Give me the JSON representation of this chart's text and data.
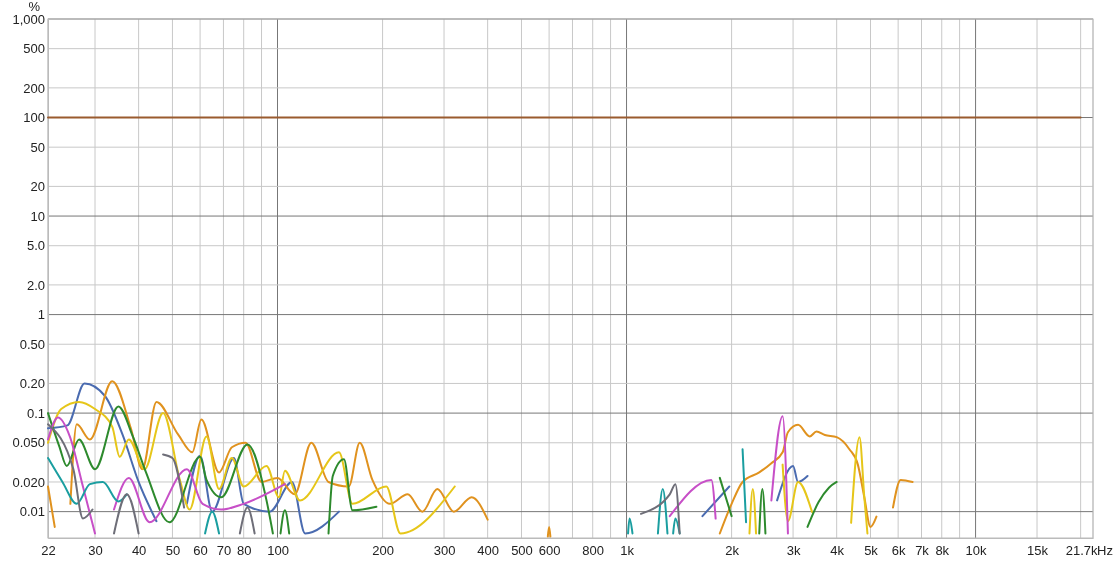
{
  "chart_data": {
    "type": "line",
    "ylabel": "%",
    "xlabel": "Hz",
    "log": "xy",
    "grid": true,
    "xlim": [
      22,
      21700
    ],
    "ylim": [
      0.0054,
      1000
    ],
    "xticks": [
      22,
      30,
      40,
      50,
      60,
      70,
      80,
      {
        "value": 90,
        "label": null
      },
      100,
      200,
      300,
      400,
      500,
      600,
      {
        "value": 700,
        "label": null
      },
      800,
      {
        "value": 900,
        "label": null
      },
      {
        "value": 1000,
        "label": "1k"
      },
      {
        "value": 2000,
        "label": "2k"
      },
      {
        "value": 3000,
        "label": "3k"
      },
      {
        "value": 4000,
        "label": "4k"
      },
      {
        "value": 5000,
        "label": "5k"
      },
      {
        "value": 6000,
        "label": "6k"
      },
      {
        "value": 7000,
        "label": "7k"
      },
      {
        "value": 8000,
        "label": "8k"
      },
      {
        "value": 9000,
        "label": null
      },
      {
        "value": 10000,
        "label": "10k"
      },
      {
        "value": 15000,
        "label": "15k"
      },
      {
        "value": 20000,
        "label": null
      },
      {
        "value": 21700,
        "label": "21.7k"
      }
    ],
    "yticks": [
      {
        "value": 1000,
        "label": "1,000"
      },
      500,
      200,
      100,
      50,
      20,
      10,
      {
        "value": 5,
        "label": "5.0"
      },
      {
        "value": 2,
        "label": "2.0"
      },
      1,
      {
        "value": 0.5,
        "label": "0.50"
      },
      {
        "value": 0.2,
        "label": "0.20"
      },
      0.1,
      {
        "value": 0.05,
        "label": "0.050"
      },
      {
        "value": 0.02,
        "label": "0.020"
      },
      0.01
    ],
    "series": [
      {
        "color": "#9a5b2e",
        "x": [
          22,
          20000
        ],
        "values": [
          100,
          100
        ]
      },
      {
        "color": "#4a6bb0",
        "x": [
          22,
          25,
          28,
          32,
          36,
          40,
          45,
          48,
          55,
          60,
          65,
          75,
          80,
          95,
          110,
          120,
          150,
          170,
          1300,
          1650,
          1970,
          2100,
          2700,
          3000,
          3100,
          3300
        ],
        "values": [
          0.07,
          0.075,
          0.2,
          0.15,
          0.06,
          0.02,
          0.008,
          null,
          0.012,
          0.037,
          0.01,
          0.035,
          0.012,
          0.01,
          0.02,
          0.006,
          0.01,
          null,
          null,
          0.009,
          0.018,
          null,
          0.013,
          0.029,
          0.02,
          0.023
        ]
      },
      {
        "color": "#e0921e",
        "x": [
          22,
          23,
          24,
          25.5,
          26.6,
          29,
          33.6,
          38,
          41,
          45,
          52,
          57,
          60.5,
          68,
          74,
          81,
          90,
          100,
          112,
          125,
          140,
          160,
          172,
          187,
          210,
          236,
          260,
          287,
          320,
          360,
          400,
          420,
          590,
          595,
          600,
          605,
          610,
          1800,
          1850,
          2000,
          2150,
          2400,
          2600,
          2800,
          2900,
          3100,
          3350,
          3500,
          3700,
          4000,
          4350,
          4600,
          4800,
          5000,
          5200,
          5400,
          5800,
          6100,
          6600
        ],
        "values": [
          0.018,
          0.007,
          null,
          0.012,
          0.077,
          0.054,
          0.21,
          0.07,
          0.027,
          0.13,
          0.06,
          0.04,
          0.086,
          0.025,
          0.045,
          0.05,
          0.02,
          0.022,
          0.015,
          0.05,
          0.02,
          0.018,
          0.05,
          0.021,
          0.012,
          0.015,
          0.01,
          0.017,
          0.01,
          0.014,
          0.0083,
          null,
          null,
          0.0056,
          0.007,
          0.0056,
          null,
          null,
          0.006,
          0.012,
          0.02,
          0.025,
          0.031,
          0.04,
          0.064,
          0.076,
          0.058,
          0.065,
          0.06,
          0.057,
          0.043,
          0.03,
          0.014,
          0.007,
          0.0089,
          null,
          0.011,
          0.021,
          0.02
        ]
      },
      {
        "color": "#e6c619",
        "x": [
          22,
          24,
          27,
          30,
          33.6,
          35.3,
          37.5,
          41.6,
          47,
          52.5,
          56,
          62.6,
          68,
          74,
          80,
          93,
          101,
          105,
          116,
          150,
          164,
          205,
          225,
          322,
          340,
          2200,
          2250,
          2300,
          2350,
          2450,
          2800,
          2900,
          3100,
          3400,
          3600,
          4300,
          4400,
          4650,
          4800,
          4900
        ],
        "values": [
          0.05,
          0.11,
          0.13,
          0.11,
          0.073,
          0.036,
          0.054,
          0.027,
          0.1,
          0.021,
          0.0105,
          0.058,
          0.017,
          0.035,
          0.018,
          0.029,
          0.014,
          0.026,
          0.013,
          0.04,
          0.012,
          0.018,
          0.006,
          0.018,
          null,
          null,
          0.006,
          0.017,
          0.006,
          null,
          0.03,
          0.008,
          0.02,
          0.0099,
          null,
          null,
          0.0077,
          0.057,
          0.014,
          0.006
        ]
      },
      {
        "color": "#2d8a2d",
        "x": [
          22,
          23.7,
          24.9,
          27,
          30,
          35,
          38.5,
          42,
          49,
          60,
          62.6,
          69,
          82,
          93,
          97,
          100,
          102,
          105,
          108,
          115,
          140,
          144,
          155,
          164,
          192,
          205,
          1800,
          1850,
          2000,
          2100,
          2400,
          2450,
          2500,
          3200,
          3300,
          3550,
          3800,
          4000
        ],
        "values": [
          0.1,
          0.046,
          0.029,
          0.054,
          0.027,
          0.117,
          0.058,
          0.025,
          0.0078,
          0.036,
          0.021,
          0.014,
          0.048,
          0.013,
          0.006,
          null,
          0.006,
          0.0103,
          0.006,
          null,
          0.006,
          0.023,
          0.034,
          0.0103,
          0.0112,
          null,
          null,
          0.022,
          0.009,
          null,
          0.006,
          0.017,
          0.006,
          null,
          0.007,
          0.0125,
          0.0175,
          0.02
        ]
      },
      {
        "color": "#c74fc7",
        "x": [
          22,
          23.5,
          25.4,
          27.7,
          30,
          32,
          34,
          37.5,
          43,
          55,
          61,
          69,
          80,
          105,
          112,
          1250,
          1330,
          1750,
          1800,
          1900,
          2500,
          2600,
          2800,
          2900
        ],
        "values": [
          0.054,
          0.09,
          0.058,
          0.018,
          0.006,
          null,
          0.0105,
          0.022,
          0.0078,
          0.027,
          0.012,
          0.0105,
          0.012,
          0.019,
          null,
          null,
          0.009,
          0.021,
          0.0085,
          null,
          null,
          0.013,
          0.093,
          0.006
        ]
      },
      {
        "color": "#1a9ea0",
        "x": [
          22,
          24.2,
          26.6,
          29,
          31.6,
          35,
          37,
          40,
          60,
          62,
          65,
          68,
          70,
          1000,
          1010,
          1020,
          1040,
          1100,
          1230,
          1270,
          1310,
          1330,
          1360,
          1380,
          1420,
          1500,
          2000,
          2150,
          2200
        ],
        "values": [
          0.035,
          0.02,
          0.012,
          0.019,
          0.02,
          0.0127,
          0.015,
          null,
          null,
          0.006,
          0.01,
          0.006,
          null,
          null,
          0.006,
          0.0085,
          0.006,
          null,
          0.006,
          0.017,
          0.006,
          null,
          0.006,
          0.0085,
          0.006,
          null,
          null,
          0.043,
          0.0078
        ]
      },
      {
        "color": "#6e6e78",
        "x": [
          22,
          26,
          27.7,
          29.5,
          32,
          34,
          37,
          40,
          42,
          47,
          50,
          54,
          60,
          78,
          82,
          86,
          90,
          1050,
          1100,
          1330,
          1380,
          1420
        ],
        "values": [
          0.077,
          0.027,
          0.0085,
          0.0105,
          null,
          0.006,
          0.015,
          0.006,
          null,
          0.038,
          0.035,
          0.011,
          null,
          0.006,
          0.011,
          0.006,
          null,
          null,
          0.0095,
          0.015,
          0.019,
          0.006
        ]
      }
    ]
  }
}
